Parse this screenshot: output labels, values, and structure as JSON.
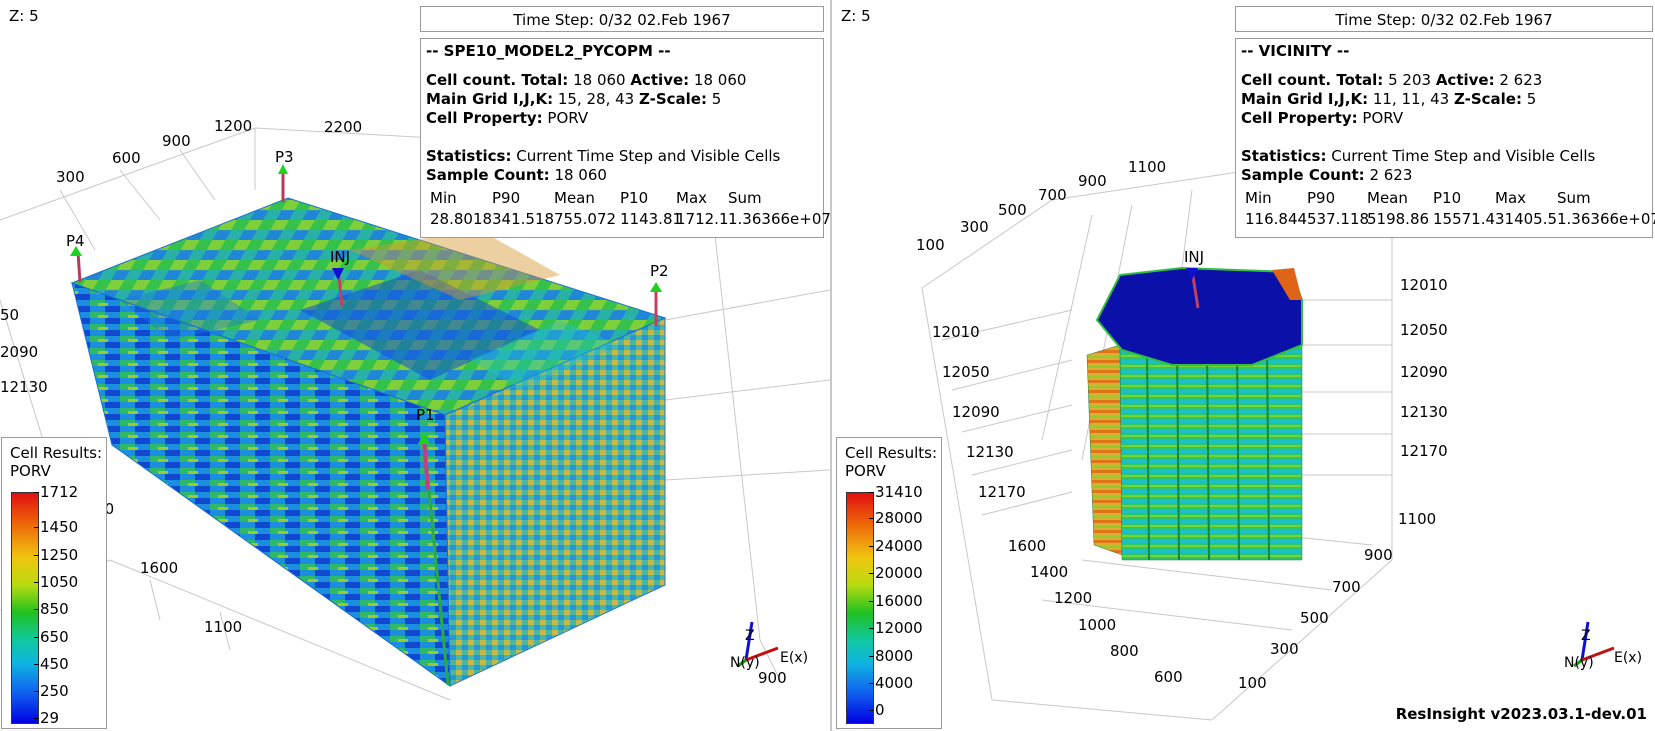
{
  "left_view": {
    "z_label": "Z: 5",
    "time_step": "Time Step: 0/32 02.Feb 1967",
    "title": "-- SPE10_MODEL2_PYCOPM --",
    "cell_count_label": "Cell count. Total:",
    "cell_count_total": "18 060",
    "active_label": "Active:",
    "active": "18 060",
    "main_grid_label": "Main Grid I,J,K:",
    "main_grid": "15, 28, 43",
    "zscale_label": "Z-Scale:",
    "zscale": "5",
    "cell_property_label": "Cell Property:",
    "cell_property": "PORV",
    "statistics_label": "Statistics:",
    "statistics": "Current Time Step and Visible Cells",
    "sample_count_label": "Sample Count:",
    "sample_count": "18 060",
    "stats_headers": [
      "Min",
      "P90",
      "Mean",
      "P10",
      "Max",
      "Sum"
    ],
    "stats_values": [
      "28.8018",
      "341.518",
      "755.072",
      "1143.81",
      "1712.1",
      "1.36366e+07"
    ],
    "legend_title_1": "Cell Results:",
    "legend_title_2": "PORV",
    "legend_ticks": [
      "1712",
      "1450",
      "1250",
      "1050",
      "850",
      "650",
      "450",
      "250",
      "29"
    ],
    "wells": [
      "P3",
      "P4",
      "INJ",
      "P2",
      "P1"
    ],
    "axis_labels": [
      "1200",
      "900",
      "600",
      "300",
      "2200",
      "50",
      "2090",
      "12130",
      "2200",
      "1600",
      "1100",
      "900"
    ],
    "triad": {
      "z": "Z",
      "n": "N(y)",
      "e": "E(x)"
    }
  },
  "right_view": {
    "z_label": "Z: 5",
    "time_step": "Time Step: 0/32 02.Feb 1967",
    "title": "-- VICINITY --",
    "cell_count_label": "Cell count. Total:",
    "cell_count_total": "5 203",
    "active_label": "Active:",
    "active": "2 623",
    "main_grid_label": "Main Grid I,J,K:",
    "main_grid": "11, 11, 43",
    "zscale_label": "Z-Scale:",
    "zscale": "5",
    "cell_property_label": "Cell Property:",
    "cell_property": "PORV",
    "statistics_label": "Statistics:",
    "statistics": "Current Time Step and Visible Cells",
    "sample_count_label": "Sample Count:",
    "sample_count": "2 623",
    "stats_headers": [
      "Min",
      "P90",
      "Mean",
      "P10",
      "Max",
      "Sum"
    ],
    "stats_values": [
      "116.844",
      "537.118",
      "5198.86",
      "15571.4",
      "31405.5",
      "1.36366e+07"
    ],
    "legend_title_1": "Cell Results:",
    "legend_title_2": "PORV",
    "legend_ticks": [
      "31410",
      "28000",
      "24000",
      "20000",
      "16000",
      "12000",
      "8000",
      "4000",
      "0"
    ],
    "wells": [
      "INJ"
    ],
    "axis_top": [
      "100",
      "300",
      "500",
      "700",
      "900",
      "1100"
    ],
    "axis_left_depth": [
      "12010",
      "12050",
      "12090",
      "12130",
      "12170"
    ],
    "axis_right_depth": [
      "12010",
      "12050",
      "12090",
      "12130",
      "12170"
    ],
    "axis_bottom_left": [
      "1600",
      "1400",
      "1200",
      "1000",
      "800",
      "600"
    ],
    "axis_bottom_right": [
      "1100",
      "900",
      "700",
      "500",
      "300",
      "100"
    ],
    "triad": {
      "z": "Z",
      "n": "N(y)",
      "e": "E(x)"
    }
  },
  "version": "ResInsight v2023.03.1-dev.01"
}
